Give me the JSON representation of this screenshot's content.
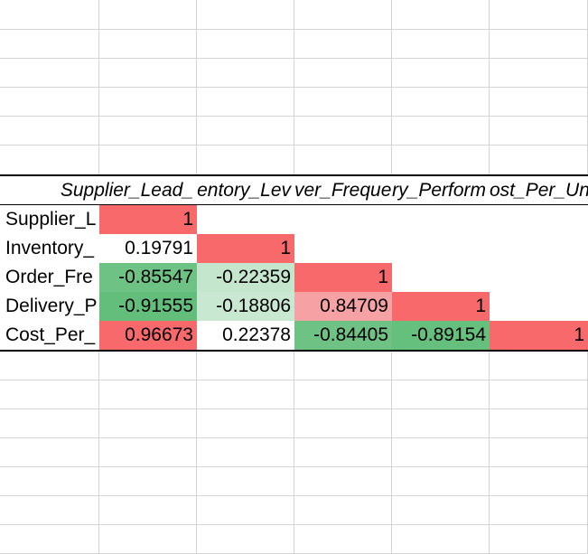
{
  "sheet": {
    "headers": [
      "",
      "Supplier_Lead_",
      "entory_Lev",
      "ver_Frequen",
      "ry_Perform",
      "ost_Per_Un"
    ],
    "rows": [
      {
        "label": "Supplier_L",
        "values": [
          "1",
          "",
          "",
          "",
          ""
        ]
      },
      {
        "label": "Inventory_",
        "values": [
          "0.19791",
          "1",
          "",
          "",
          ""
        ]
      },
      {
        "label": "Order_Fre",
        "values": [
          "-0.85547",
          "-0.22359",
          "1",
          "",
          ""
        ]
      },
      {
        "label": "Delivery_P",
        "values": [
          "-0.91555",
          "-0.18806",
          "0.84709",
          "1",
          ""
        ]
      },
      {
        "label": "Cost_Per_",
        "values": [
          "0.96673",
          "0.22378",
          "-0.84405",
          "-0.89154",
          "1"
        ]
      }
    ]
  },
  "colors": {
    "strong_positive": "#f8696b",
    "medium_positive": "#f6a2a4",
    "neutral": "#ffffff",
    "light_negative": "#bfe3c9",
    "strong_negative": "#63be7b",
    "medium_negative": "#6ec384",
    "gridline": "#d4d4d4",
    "border": "#000000"
  },
  "cell_fill": [
    [
      "#f8696b",
      "",
      "",
      "",
      ""
    ],
    [
      "#ffffff",
      "#f8696b",
      "",
      "",
      ""
    ],
    [
      "#6ec384",
      "#c3e6cd",
      "#f8696b",
      "",
      ""
    ],
    [
      "#63be7b",
      "#c9e8d2",
      "#f6a2a4",
      "#f8696b",
      ""
    ],
    [
      "#f8696b",
      "#ffffff",
      "#6ec384",
      "#65bf7d",
      "#f8696b"
    ]
  ]
}
